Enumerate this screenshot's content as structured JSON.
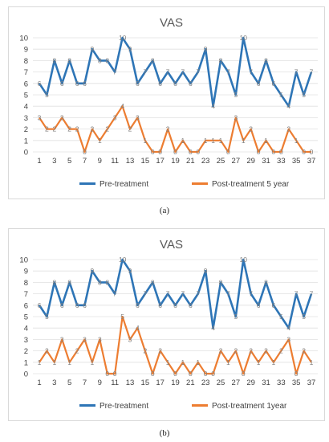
{
  "colors": {
    "pre": "#2e75b6",
    "post": "#ed7d31",
    "grid": "#e0e0e0",
    "axis_text": "#404040",
    "title": "#595959"
  },
  "captions": [
    "(a)",
    "(b)"
  ],
  "chart_data": [
    {
      "type": "line",
      "title": "VAS",
      "x": [
        1,
        2,
        3,
        4,
        5,
        6,
        7,
        8,
        9,
        10,
        11,
        12,
        13,
        14,
        15,
        16,
        17,
        18,
        19,
        20,
        21,
        22,
        23,
        24,
        25,
        26,
        27,
        28,
        29,
        30,
        31,
        32,
        33,
        34,
        35,
        36,
        37
      ],
      "x_tick_labels": [
        "1",
        "3",
        "5",
        "7",
        "9",
        "11",
        "13",
        "15",
        "17",
        "19",
        "21",
        "23",
        "25",
        "27",
        "29",
        "31",
        "33",
        "35",
        "37"
      ],
      "ylim": [
        0,
        10
      ],
      "y_ticks": [
        0,
        1,
        2,
        3,
        4,
        5,
        6,
        7,
        8,
        9,
        10
      ],
      "grid": true,
      "legend_position": "bottom",
      "series": [
        {
          "name": "Pre-treatment",
          "color": "#2e75b6",
          "labels_shown": [],
          "values": [
            6,
            5,
            8,
            6,
            8,
            6,
            6,
            9,
            8,
            8,
            7,
            10,
            9,
            6,
            7,
            8,
            6,
            7,
            6,
            7,
            6,
            7,
            9,
            4,
            8,
            7,
            5,
            10,
            7,
            6,
            8,
            6,
            5,
            4,
            7,
            5,
            7
          ]
        },
        {
          "name": "Post-treatment 5 year",
          "color": "#ed7d31",
          "values": [
            3,
            2,
            2,
            3,
            2,
            2,
            0,
            2,
            1,
            2,
            3,
            4,
            2,
            3,
            1,
            0,
            0,
            2,
            0,
            1,
            0,
            0,
            1,
            1,
            1,
            0,
            3,
            1,
            2,
            0,
            1,
            0,
            0,
            2,
            1,
            0,
            0
          ]
        }
      ],
      "point_labels_pre": {
        "1": "6",
        "2": "5",
        "3": "8",
        "4": "6",
        "5": "8",
        "6": "6",
        "7": "6",
        "8": "9",
        "9": "8",
        "10": "8",
        "12": "10",
        "13": "9",
        "23": "9",
        "28": "10"
      }
    },
    {
      "type": "line",
      "title": "VAS",
      "x": [
        1,
        2,
        3,
        4,
        5,
        6,
        7,
        8,
        9,
        10,
        11,
        12,
        13,
        14,
        15,
        16,
        17,
        18,
        19,
        20,
        21,
        22,
        23,
        24,
        25,
        26,
        27,
        28,
        29,
        30,
        31,
        32,
        33,
        34,
        35,
        36,
        37
      ],
      "x_tick_labels": [
        "1",
        "3",
        "5",
        "7",
        "9",
        "11",
        "13",
        "15",
        "17",
        "19",
        "21",
        "23",
        "25",
        "27",
        "29",
        "31",
        "33",
        "35",
        "37"
      ],
      "ylim": [
        0,
        10
      ],
      "y_ticks": [
        0,
        1,
        2,
        3,
        4,
        5,
        6,
        7,
        8,
        9,
        10
      ],
      "grid": true,
      "legend_position": "bottom",
      "series": [
        {
          "name": "Pre-treatment",
          "color": "#2e75b6",
          "values": [
            6,
            5,
            8,
            6,
            8,
            6,
            6,
            9,
            8,
            8,
            7,
            10,
            9,
            6,
            7,
            8,
            6,
            7,
            6,
            7,
            6,
            7,
            9,
            4,
            8,
            7,
            5,
            10,
            7,
            6,
            8,
            6,
            5,
            4,
            7,
            5,
            7
          ]
        },
        {
          "name": "Post-treatment 1year",
          "color": "#ed7d31",
          "values": [
            1,
            2,
            1,
            3,
            1,
            2,
            3,
            1,
            3,
            0,
            0,
            5,
            3,
            4,
            2,
            0,
            2,
            1,
            0,
            1,
            0,
            1,
            0,
            0,
            2,
            1,
            2,
            0,
            2,
            1,
            2,
            1,
            2,
            3,
            0,
            2,
            1
          ]
        }
      ],
      "point_labels_pre": {
        "1": "6",
        "2": "5",
        "3": "8",
        "4": "6",
        "5": "8",
        "6": "6",
        "7": "6",
        "8": "9",
        "9": "8",
        "10": "8",
        "12": "10",
        "13": "9",
        "23": "9",
        "28": "10"
      }
    }
  ]
}
